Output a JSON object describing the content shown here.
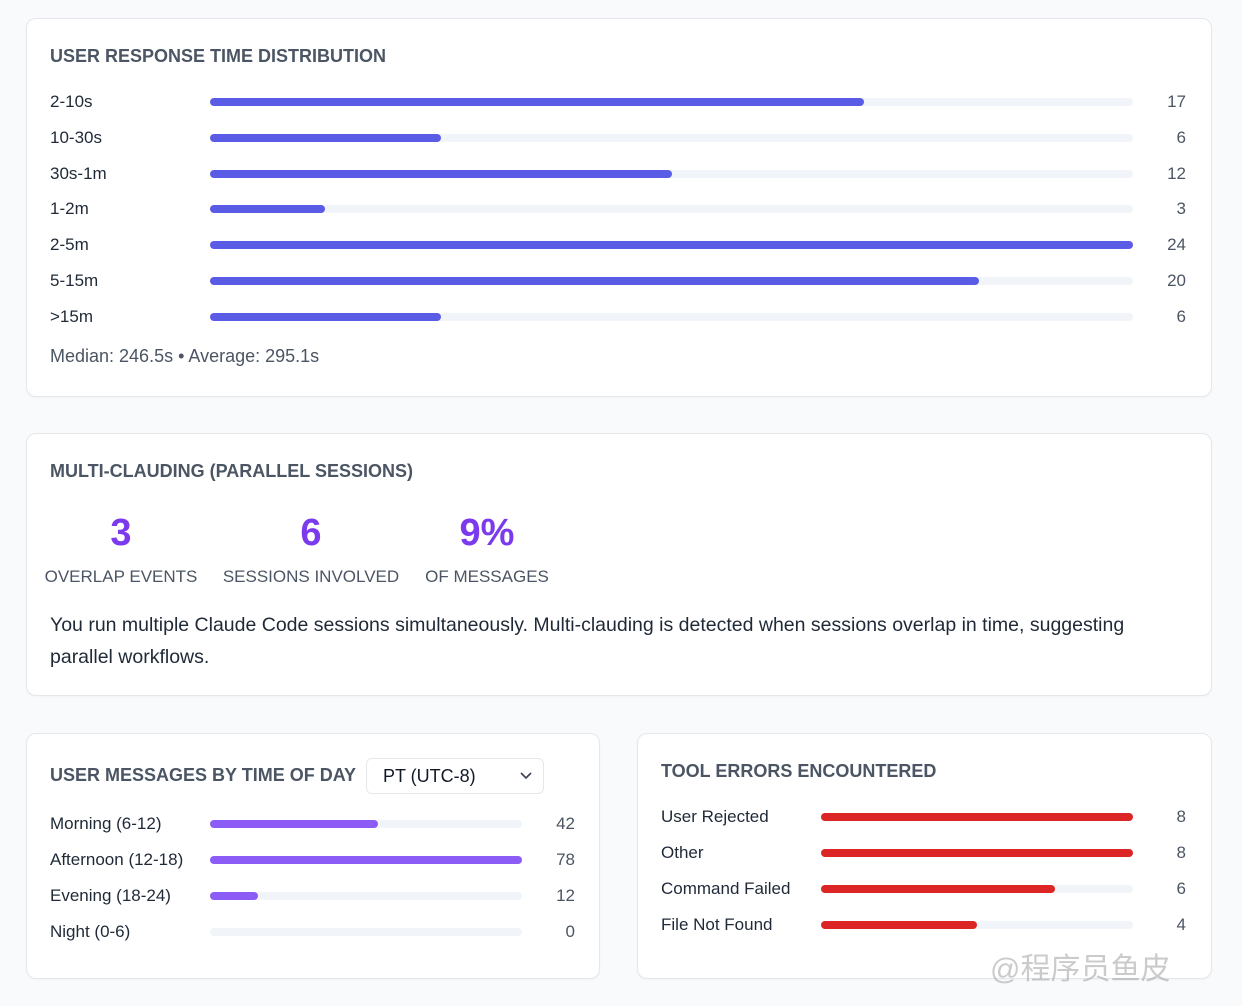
{
  "response_time": {
    "title": "USER RESPONSE TIME DISTRIBUTION",
    "categories": [
      "2-10s",
      "10-30s",
      "30s-1m",
      "1-2m",
      "2-5m",
      "5-15m",
      ">15m"
    ],
    "values": [
      17,
      6,
      12,
      3,
      24,
      20,
      6
    ],
    "xlim": [
      0,
      24
    ],
    "color": "#5b5ce6",
    "summary": "Median: 246.5s • Average: 295.1s"
  },
  "multi_clauding": {
    "title": "MULTI-CLAUDING (PARALLEL SESSIONS)",
    "stats": [
      {
        "value": 3,
        "label": "OVERLAP EVENTS"
      },
      {
        "value": 6,
        "label": "SESSIONS INVOLVED"
      },
      {
        "value": 9,
        "value_label": "9%",
        "label": "OF MESSAGES"
      }
    ],
    "color": "#7c3aed",
    "description": "You run multiple Claude Code sessions simultaneously. Multi-clauding is detected when sessions overlap in time, suggesting parallel workflows."
  },
  "time_of_day": {
    "title": "USER MESSAGES BY TIME OF DAY",
    "timezone": "PT (UTC-8)",
    "categories": [
      "Morning (6-12)",
      "Afternoon (12-18)",
      "Evening (18-24)",
      "Night (0-6)"
    ],
    "values": [
      42,
      78,
      12,
      0
    ],
    "xlim": [
      0,
      78
    ],
    "color": "#8b5cf6"
  },
  "tool_errors": {
    "title": "TOOL ERRORS ENCOUNTERED",
    "categories": [
      "User Rejected",
      "Other",
      "Command Failed",
      "File Not Found"
    ],
    "values": [
      8,
      8,
      6,
      4
    ],
    "xlim": [
      0,
      8
    ],
    "color": "#dc2626"
  },
  "watermark": "@程序员鱼皮"
}
